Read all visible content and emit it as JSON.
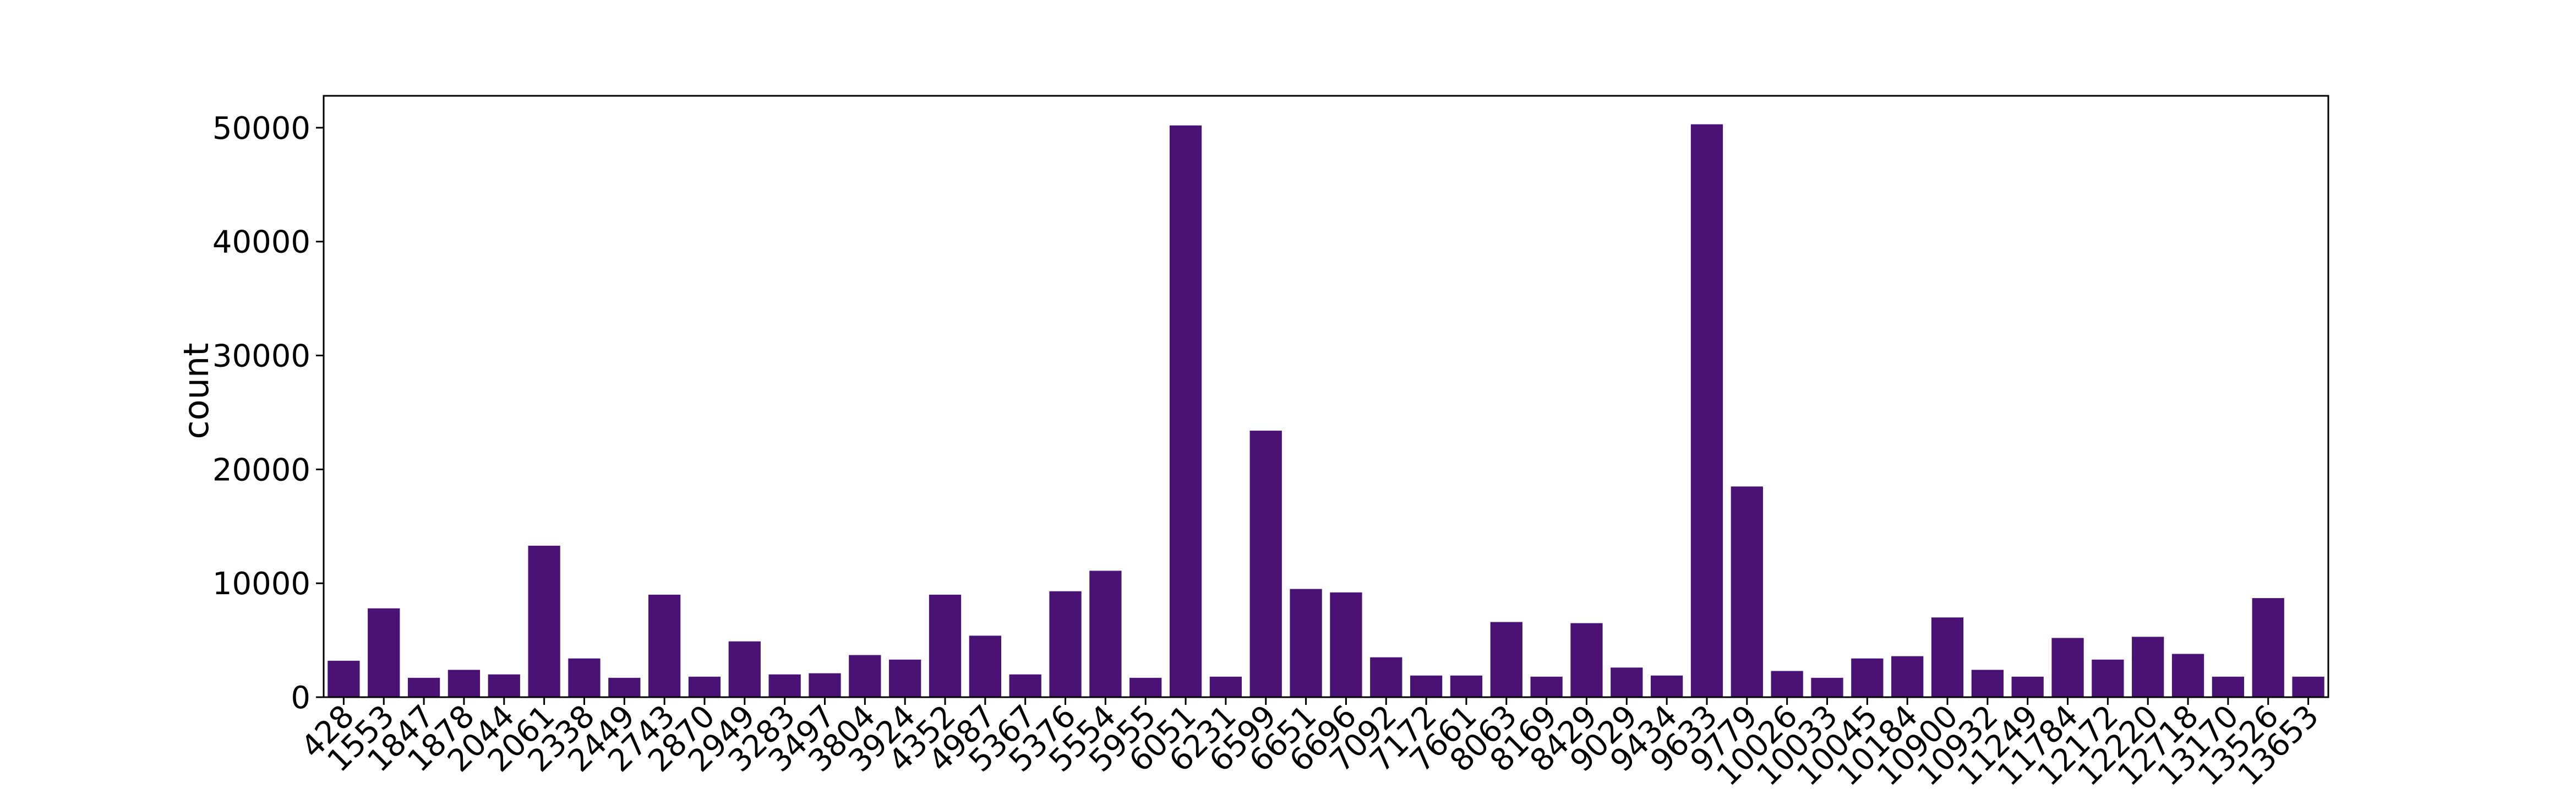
{
  "chart_data": {
    "type": "bar",
    "ylabel": "count",
    "xlabel": "",
    "ylim": [
      0,
      52800
    ],
    "yticks": [
      0,
      10000,
      20000,
      30000,
      40000,
      50000
    ],
    "grid": false,
    "bar_color": "#4b1275",
    "categories": [
      "428",
      "1553",
      "1847",
      "1878",
      "2044",
      "2061",
      "2338",
      "2449",
      "2743",
      "2870",
      "2949",
      "3283",
      "3497",
      "3804",
      "3924",
      "4352",
      "4987",
      "5367",
      "5376",
      "5554",
      "5955",
      "6051",
      "6231",
      "6599",
      "6651",
      "6696",
      "7092",
      "7172",
      "7661",
      "8063",
      "8169",
      "8429",
      "9029",
      "9434",
      "9633",
      "9779",
      "10026",
      "10033",
      "10045",
      "10184",
      "10900",
      "10932",
      "11249",
      "11784",
      "12172",
      "12220",
      "12718",
      "13170",
      "13526",
      "13653"
    ],
    "values": [
      3200,
      7800,
      1700,
      2400,
      2000,
      13300,
      3400,
      1700,
      9000,
      1800,
      4900,
      2000,
      2100,
      3700,
      3300,
      9000,
      5400,
      2000,
      9300,
      11100,
      1700,
      50200,
      1800,
      23400,
      9500,
      9200,
      3500,
      1900,
      1900,
      6600,
      1800,
      6500,
      2600,
      1900,
      50300,
      18500,
      2300,
      1700,
      3400,
      3600,
      7000,
      2400,
      1800,
      5200,
      3300,
      5300,
      3800,
      1800,
      8700,
      1800
    ]
  }
}
